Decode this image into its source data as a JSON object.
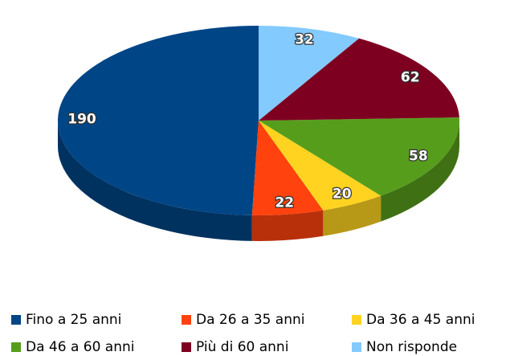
{
  "chart_data": {
    "type": "pie",
    "categories": [
      "Fino a 25 anni",
      "Da 26 a 35 anni",
      "Da 36 a 45 anni",
      "Da 46 a 60 anni",
      "Più di 60 anni",
      "Non risponde"
    ],
    "values": [
      190,
      22,
      20,
      58,
      62,
      32
    ],
    "colors": [
      "#004586",
      "#ff420e",
      "#ffd320",
      "#579d1c",
      "#7e0021",
      "#83caff"
    ]
  }
}
